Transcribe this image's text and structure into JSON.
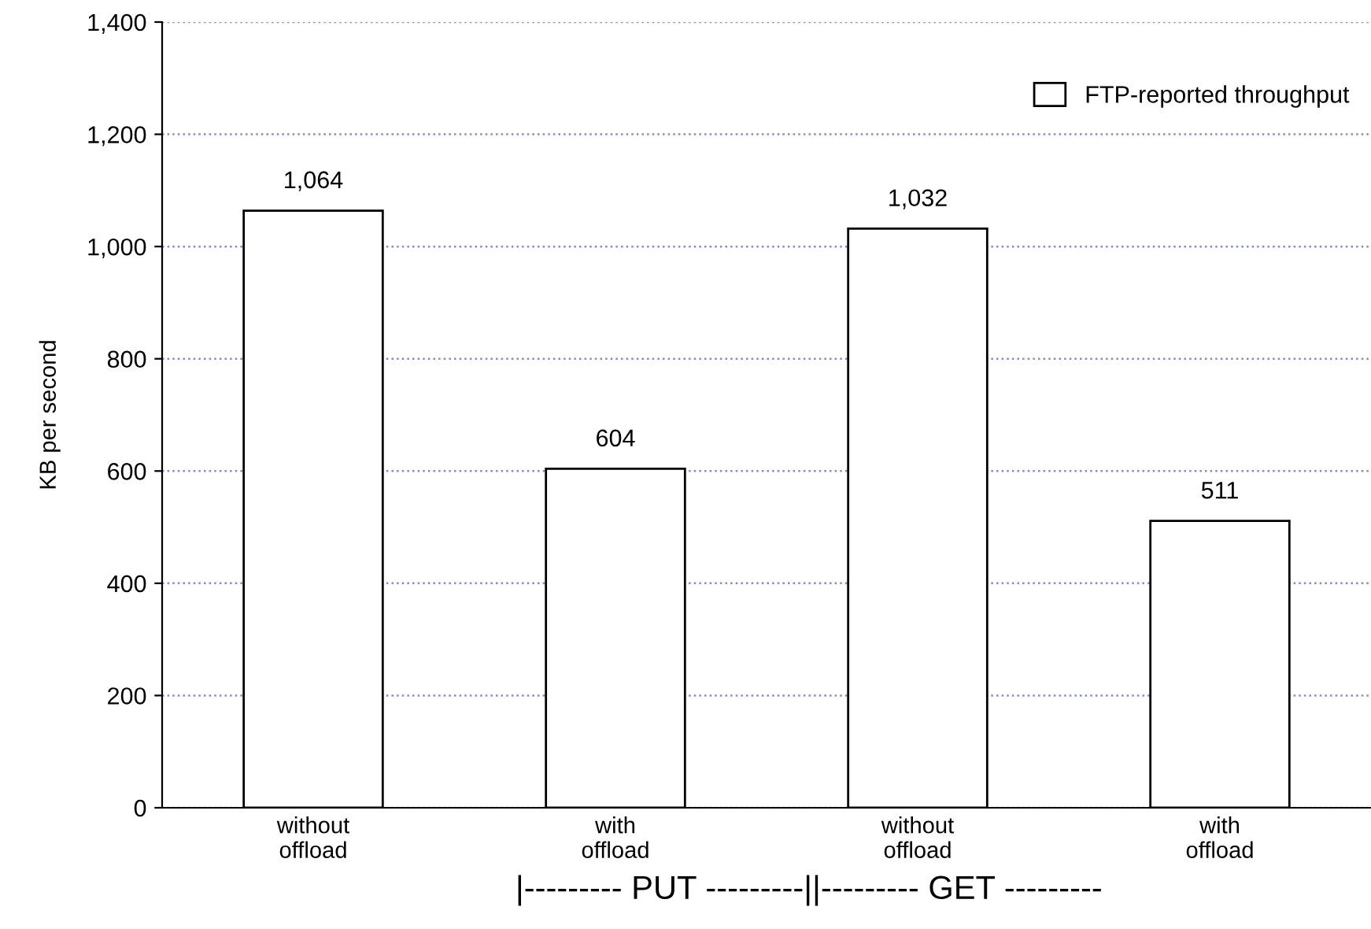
{
  "chart_data": {
    "type": "bar",
    "ylabel": "KB per second",
    "categories": [
      "without\noffload",
      "with\noffload",
      "without\noffload",
      "with\noffload"
    ],
    "series": [
      {
        "name": "FTP-reported throughput",
        "color": "#ffffff",
        "values": [
          1064,
          604,
          1032,
          511
        ],
        "value_labels": [
          "1,064",
          "604",
          "1,032",
          "511"
        ]
      }
    ],
    "ylim": [
      0,
      1400
    ],
    "yticks": [
      0,
      200,
      400,
      600,
      800,
      {
        "value": 1000,
        "label": "1,000"
      },
      {
        "value": 1200,
        "label": "1,200"
      },
      {
        "value": 1400,
        "label": "1,400"
      }
    ],
    "grid": "y",
    "legend": "top right",
    "annotations": [
      "|--------- PUT ---------||--------- GET ---------"
    ]
  }
}
